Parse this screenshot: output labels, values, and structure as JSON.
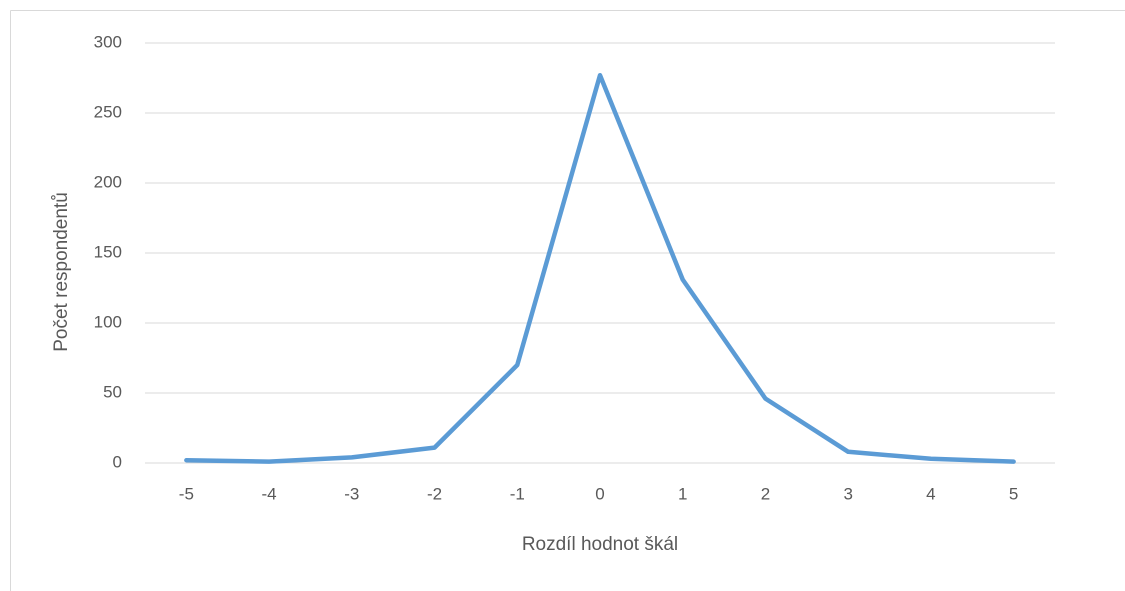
{
  "chart_data": {
    "type": "line",
    "x_label": "Rozdíl hodnot škál",
    "y_label": "Počet respondentů",
    "categories": [
      "-5",
      "-4",
      "-3",
      "-2",
      "-1",
      "0",
      "1",
      "2",
      "3",
      "4",
      "5"
    ],
    "series": [
      {
        "color": "#5b9bd5",
        "values": [
          2,
          1,
          4,
          11,
          70,
          277,
          131,
          46,
          8,
          3,
          1
        ]
      }
    ],
    "ylim": [
      0,
      300
    ],
    "yticks": [
      0,
      50,
      100,
      150,
      200,
      250,
      300
    ],
    "grid": true
  }
}
